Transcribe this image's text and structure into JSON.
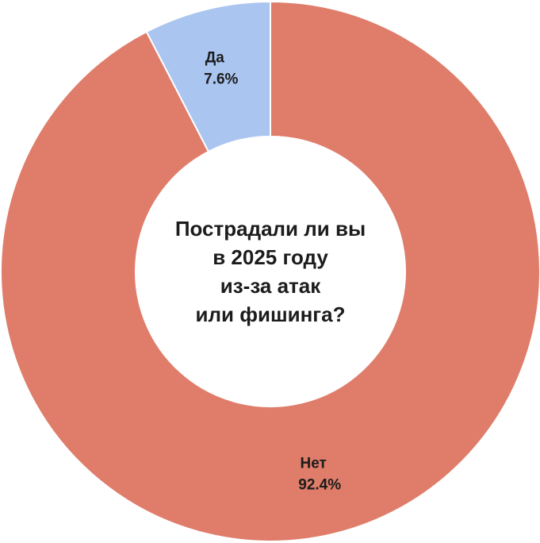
{
  "chart_data": {
    "type": "donut",
    "title": "Пострадали ли вы\nв 2025 году\nиз-за атак\nили фишинга?",
    "categories": [
      "Да",
      "Нет"
    ],
    "values": [
      7.6,
      92.4
    ],
    "value_labels": [
      "7.6%",
      "92.4%"
    ],
    "colors": [
      "#aac5f0",
      "#df7d6a"
    ]
  }
}
